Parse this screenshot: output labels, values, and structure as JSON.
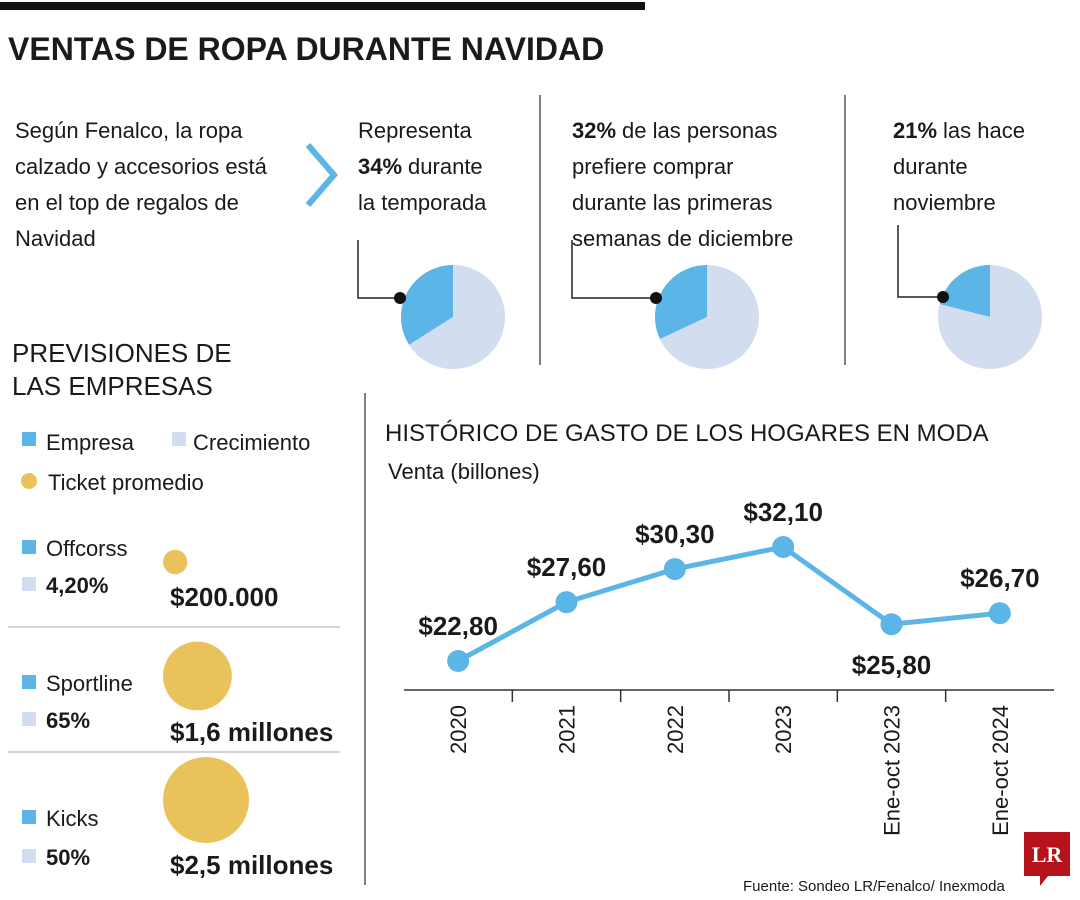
{
  "title": "VENTAS DE ROPA DURANTE NAVIDAD",
  "intro": [
    "Según Fenalco, la ropa",
    "calzado y accesorios está",
    "en el top de regalos de",
    "Navidad"
  ],
  "source": "Fuente: Sondeo LR/Fenalco/ Inexmoda",
  "logo": "LR",
  "chart_data": [
    {
      "type": "pie",
      "before": [
        "Representa"
      ],
      "value_label": "34%",
      "after": [
        "durante",
        "la temporada"
      ],
      "values": [
        34,
        66
      ],
      "colors": [
        "#5bb5e6",
        "#d3ddf0"
      ]
    },
    {
      "type": "pie",
      "value_label": "32%",
      "after": [
        "de las personas",
        "prefiere comprar",
        "durante las primeras",
        "semanas de diciembre"
      ],
      "values": [
        32,
        68
      ],
      "colors": [
        "#5bb5e6",
        "#d3ddf0"
      ]
    },
    {
      "type": "pie",
      "value_label": "21%",
      "after": [
        "las hace",
        "durante",
        "noviembre"
      ],
      "values": [
        21,
        79
      ],
      "colors": [
        "#5bb5e6",
        "#d3ddf0"
      ]
    },
    {
      "type": "bubble",
      "title": [
        "PREVISIONES DE",
        "LAS EMPRESAS"
      ],
      "legend": [
        {
          "name": "Empresa",
          "color": "#5bb5e6"
        },
        {
          "name": "Crecimiento",
          "color": "#d3ddf0"
        },
        {
          "name": "Ticket promedio",
          "color": "#e9c25b"
        }
      ],
      "categories": [
        "Offcorss",
        "Sportline",
        "Kicks"
      ],
      "growth_labels": [
        "4,20%",
        "65%",
        "50%"
      ],
      "values": [
        200000,
        1600000,
        2500000
      ],
      "value_labels": [
        "$200.000",
        "$1,6 millones",
        "$2,5 millones"
      ]
    },
    {
      "type": "line",
      "title": "HISTÓRICO DE GASTO DE LOS HOGARES EN MODA",
      "subtitle": "Venta (billones)",
      "categories": [
        "2020",
        "2021",
        "2022",
        "2023",
        "Ene-oct 2023",
        "Ene-oct 2024"
      ],
      "values": [
        22.8,
        27.6,
        30.3,
        32.1,
        25.8,
        26.7
      ],
      "value_labels": [
        "$22,80",
        "$27,60",
        "$30,30",
        "$32,10",
        "$25,80",
        "$26,70"
      ],
      "color": "#5bb5e6"
    }
  ]
}
